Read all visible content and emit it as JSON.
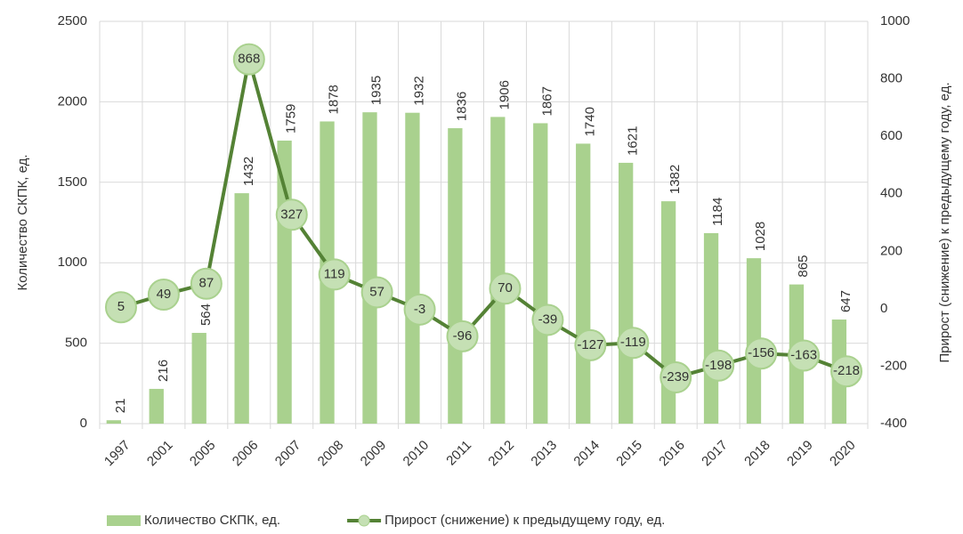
{
  "chart_data": {
    "type": "combo",
    "categories": [
      "1997",
      "2001",
      "2005",
      "2006",
      "2007",
      "2008",
      "2009",
      "2010",
      "2011",
      "2012",
      "2013",
      "2014",
      "2015",
      "2016",
      "2017",
      "2018",
      "2019",
      "2020"
    ],
    "series": [
      {
        "name": "Количество СКПК, ед.",
        "type": "bar",
        "color": "#a9d18e",
        "values": [
          21,
          216,
          564,
          1432,
          1759,
          1878,
          1935,
          1932,
          1836,
          1906,
          1867,
          1740,
          1621,
          1382,
          1184,
          1028,
          865,
          647
        ]
      },
      {
        "name": "Прирост (снижение) к предыдущему году, ед.",
        "type": "line",
        "axis": "y2",
        "color": "#548235",
        "marker_color": "#c5e0b4",
        "values": [
          5,
          49,
          87,
          868,
          327,
          119,
          57,
          -3,
          -96,
          70,
          -39,
          -127,
          -119,
          -239,
          -198,
          -156,
          -163,
          -218
        ]
      }
    ],
    "y_label": "Количество СКПК, ед.",
    "y2_label": "Прирост (снижение) к предыдущему году, ед.",
    "ylim": [
      0,
      2500
    ],
    "yticks": [
      0,
      500,
      1000,
      1500,
      2000,
      2500
    ],
    "y2lim": [
      -400,
      1000
    ],
    "y2ticks": [
      -400,
      -200,
      0,
      200,
      400,
      600,
      800,
      1000
    ],
    "grid": true,
    "legend": "bottom"
  }
}
